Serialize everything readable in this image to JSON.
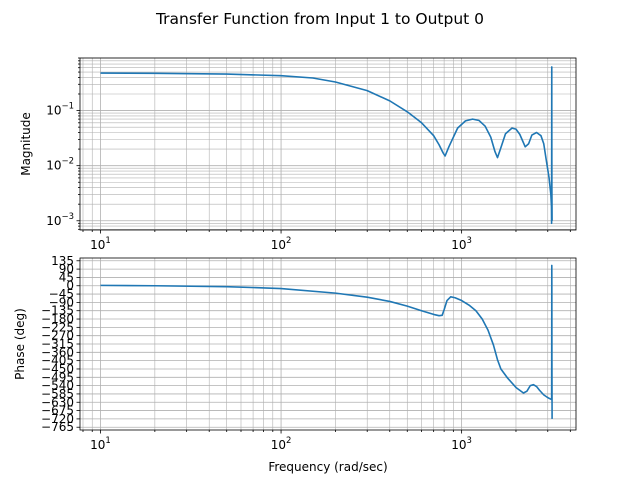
{
  "figure": {
    "title": "Transfer Function from Input 1 to Output 0"
  },
  "colors": {
    "line": "#1f77b4",
    "grid": "#b0b0b0",
    "axes": "#000000",
    "background": "#ffffff"
  },
  "chart_data": [
    {
      "type": "line",
      "name": "magnitude-panel",
      "xscale": "log",
      "yscale": "log",
      "xlim": [
        7.7,
        4300
      ],
      "ylim": [
        0.00068,
        0.9
      ],
      "xlabel": "",
      "ylabel": "Magnitude",
      "grid": true,
      "xticks": [
        {
          "value": 10,
          "base": "10",
          "exp": "1"
        },
        {
          "value": 100,
          "base": "10",
          "exp": "2"
        },
        {
          "value": 1000,
          "base": "10",
          "exp": "3"
        }
      ],
      "yticks": [
        {
          "value": 0.1,
          "base": "10",
          "exp": "−1"
        },
        {
          "value": 0.01,
          "base": "10",
          "exp": "−2"
        },
        {
          "value": 0.001,
          "base": "10",
          "exp": "−3"
        }
      ],
      "x": [
        10,
        20,
        50,
        100,
        150,
        200,
        300,
        400,
        500,
        600,
        700,
        750,
        790,
        810,
        850,
        950,
        1050,
        1150,
        1250,
        1350,
        1450,
        1530,
        1580,
        1640,
        1750,
        1900,
        2000,
        2100,
        2250,
        2350,
        2450,
        2600,
        2750,
        2850,
        2950,
        3050,
        3120,
        3145,
        3150,
        3153,
        3155,
        3157,
        3159,
        3162,
        3170
      ],
      "y": [
        0.48,
        0.475,
        0.46,
        0.43,
        0.39,
        0.33,
        0.23,
        0.15,
        0.095,
        0.06,
        0.035,
        0.024,
        0.017,
        0.015,
        0.022,
        0.048,
        0.065,
        0.07,
        0.066,
        0.052,
        0.033,
        0.018,
        0.014,
        0.02,
        0.038,
        0.048,
        0.046,
        0.037,
        0.022,
        0.025,
        0.036,
        0.04,
        0.035,
        0.025,
        0.012,
        0.006,
        0.003,
        0.0018,
        0.0009,
        0.02,
        0.2,
        0.62,
        0.05,
        0.004,
        0.001
      ]
    },
    {
      "type": "line",
      "name": "phase-panel",
      "xscale": "log",
      "yscale": "linear",
      "xlim": [
        7.7,
        4300
      ],
      "ylim": [
        -780,
        150
      ],
      "xlabel": "Frequency (rad/sec)",
      "ylabel": "Phase (deg)",
      "grid": true,
      "xticks": [
        {
          "value": 10,
          "base": "10",
          "exp": "1"
        },
        {
          "value": 100,
          "base": "10",
          "exp": "2"
        },
        {
          "value": 1000,
          "base": "10",
          "exp": "3"
        }
      ],
      "yticks": [
        135,
        90,
        45,
        0,
        -45,
        -90,
        -135,
        -180,
        -225,
        -270,
        -315,
        -360,
        -405,
        -450,
        -495,
        -540,
        -585,
        -630,
        -675,
        -720,
        -765
      ],
      "ytick_labels": [
        "135",
        "90",
        "45",
        "0",
        "−45",
        "−90",
        "−135",
        "−180",
        "−225",
        "−270",
        "−315",
        "−360",
        "−405",
        "−450",
        "−495",
        "−540",
        "−585",
        "−630",
        "−675",
        "−720",
        "−765"
      ],
      "x": [
        10,
        20,
        50,
        100,
        200,
        300,
        400,
        500,
        600,
        700,
        750,
        780,
        800,
        830,
        870,
        920,
        1000,
        1100,
        1200,
        1300,
        1400,
        1500,
        1580,
        1650,
        1800,
        2000,
        2200,
        2300,
        2400,
        2500,
        2600,
        2700,
        2850,
        3000,
        3100,
        3140,
        3150,
        3152,
        3155,
        3158,
        3160,
        3163,
        3170
      ],
      "y": [
        2,
        0,
        -5,
        -15,
        -40,
        -62,
        -85,
        -110,
        -135,
        -155,
        -162,
        -160,
        -130,
        -80,
        -60,
        -65,
        -80,
        -105,
        -135,
        -180,
        -240,
        -320,
        -400,
        -450,
        -500,
        -550,
        -580,
        -570,
        -540,
        -535,
        -545,
        -565,
        -590,
        -605,
        -612,
        -615,
        -615,
        -600,
        -300,
        110,
        20,
        -400,
        -720
      ]
    }
  ]
}
